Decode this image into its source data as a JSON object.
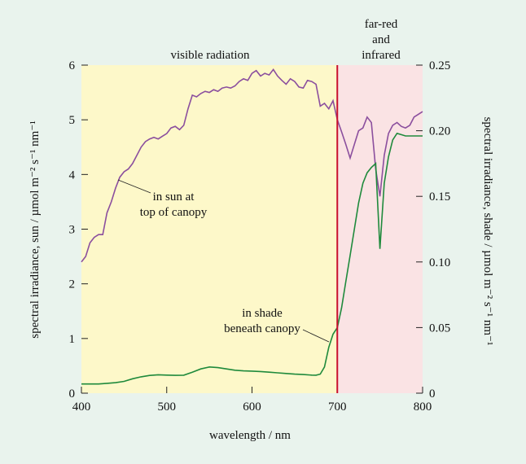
{
  "chart_data": {
    "type": "line",
    "xlabel": "wavelength / nm",
    "ylabel_left": "spectral irradiance, sun / µmol m⁻² s⁻¹ nm⁻¹",
    "ylabel_right": "spectral irradiance, shade / µmol m⁻² s⁻¹ nm⁻¹",
    "xlim": [
      400,
      800
    ],
    "ylim_left": [
      0,
      6
    ],
    "ylim_right": [
      0,
      0.25
    ],
    "x_ticks": [
      "400",
      "500",
      "600",
      "700",
      "800"
    ],
    "y_ticks_left": [
      "0",
      "1",
      "2",
      "3",
      "4",
      "5",
      "6"
    ],
    "y_ticks_right": [
      "0",
      "0.05",
      "0.10",
      "0.15",
      "0.20",
      "0.25"
    ],
    "regions": [
      {
        "label": "visible radiation",
        "from": 400,
        "to": 700,
        "color": "#fdf8c9"
      },
      {
        "label_lines": [
          "far-red",
          "and",
          "infrared"
        ],
        "from": 700,
        "to": 800,
        "color": "#fae3e4"
      }
    ],
    "divider": {
      "x": 700,
      "color": "#c8102e"
    },
    "annotations": [
      {
        "lines": [
          "in sun at",
          "top of canopy"
        ]
      },
      {
        "lines": [
          "in shade",
          "beneath canopy"
        ]
      }
    ],
    "series": [
      {
        "axis": "left",
        "color": "#8b4f9e",
        "x": [
          400,
          405,
          410,
          415,
          420,
          425,
          430,
          435,
          440,
          445,
          450,
          455,
          460,
          465,
          470,
          475,
          480,
          485,
          490,
          495,
          500,
          505,
          510,
          515,
          520,
          525,
          530,
          535,
          540,
          545,
          550,
          555,
          560,
          565,
          570,
          575,
          580,
          585,
          590,
          595,
          600,
          605,
          610,
          615,
          620,
          625,
          630,
          635,
          640,
          645,
          650,
          655,
          660,
          665,
          670,
          675,
          680,
          685,
          690,
          695,
          700,
          705,
          710,
          715,
          720,
          725,
          730,
          735,
          740,
          745,
          750,
          755,
          760,
          765,
          770,
          775,
          780,
          785,
          790,
          795,
          800
        ],
        "values": [
          2.4,
          2.5,
          2.75,
          2.85,
          2.9,
          2.9,
          3.3,
          3.5,
          3.75,
          3.95,
          4.05,
          4.1,
          4.2,
          4.35,
          4.5,
          4.6,
          4.65,
          4.68,
          4.65,
          4.7,
          4.75,
          4.85,
          4.88,
          4.82,
          4.9,
          5.2,
          5.45,
          5.42,
          5.48,
          5.52,
          5.5,
          5.55,
          5.52,
          5.58,
          5.6,
          5.58,
          5.62,
          5.7,
          5.75,
          5.72,
          5.85,
          5.9,
          5.8,
          5.85,
          5.82,
          5.92,
          5.8,
          5.72,
          5.65,
          5.75,
          5.7,
          5.6,
          5.58,
          5.72,
          5.7,
          5.65,
          5.25,
          5.3,
          5.2,
          5.35,
          5.0,
          4.78,
          4.55,
          4.3,
          4.55,
          4.8,
          4.85,
          5.05,
          4.95,
          4.1,
          3.6,
          4.35,
          4.75,
          4.9,
          4.95,
          4.88,
          4.85,
          4.9,
          5.05,
          5.1,
          5.15
        ]
      },
      {
        "axis": "right",
        "color": "#1f8a3c",
        "x": [
          400,
          410,
          420,
          430,
          440,
          450,
          460,
          470,
          480,
          490,
          500,
          510,
          520,
          530,
          540,
          550,
          560,
          570,
          580,
          590,
          600,
          610,
          620,
          630,
          640,
          650,
          660,
          670,
          675,
          680,
          685,
          690,
          695,
          700,
          705,
          710,
          715,
          720,
          725,
          730,
          735,
          740,
          745,
          750,
          755,
          760,
          765,
          770,
          775,
          780,
          785,
          790,
          795,
          800
        ],
        "values": [
          0.007,
          0.007,
          0.007,
          0.0075,
          0.008,
          0.009,
          0.011,
          0.0125,
          0.0135,
          0.014,
          0.0138,
          0.0136,
          0.0137,
          0.016,
          0.0185,
          0.02,
          0.0195,
          0.0185,
          0.0175,
          0.017,
          0.0168,
          0.0165,
          0.016,
          0.0155,
          0.015,
          0.0145,
          0.0142,
          0.0138,
          0.0137,
          0.0145,
          0.02,
          0.035,
          0.045,
          0.05,
          0.065,
          0.085,
          0.105,
          0.125,
          0.145,
          0.16,
          0.168,
          0.172,
          0.175,
          0.11,
          0.16,
          0.18,
          0.193,
          0.198,
          0.197,
          0.196,
          0.196,
          0.196,
          0.196,
          0.196
        ]
      }
    ]
  }
}
